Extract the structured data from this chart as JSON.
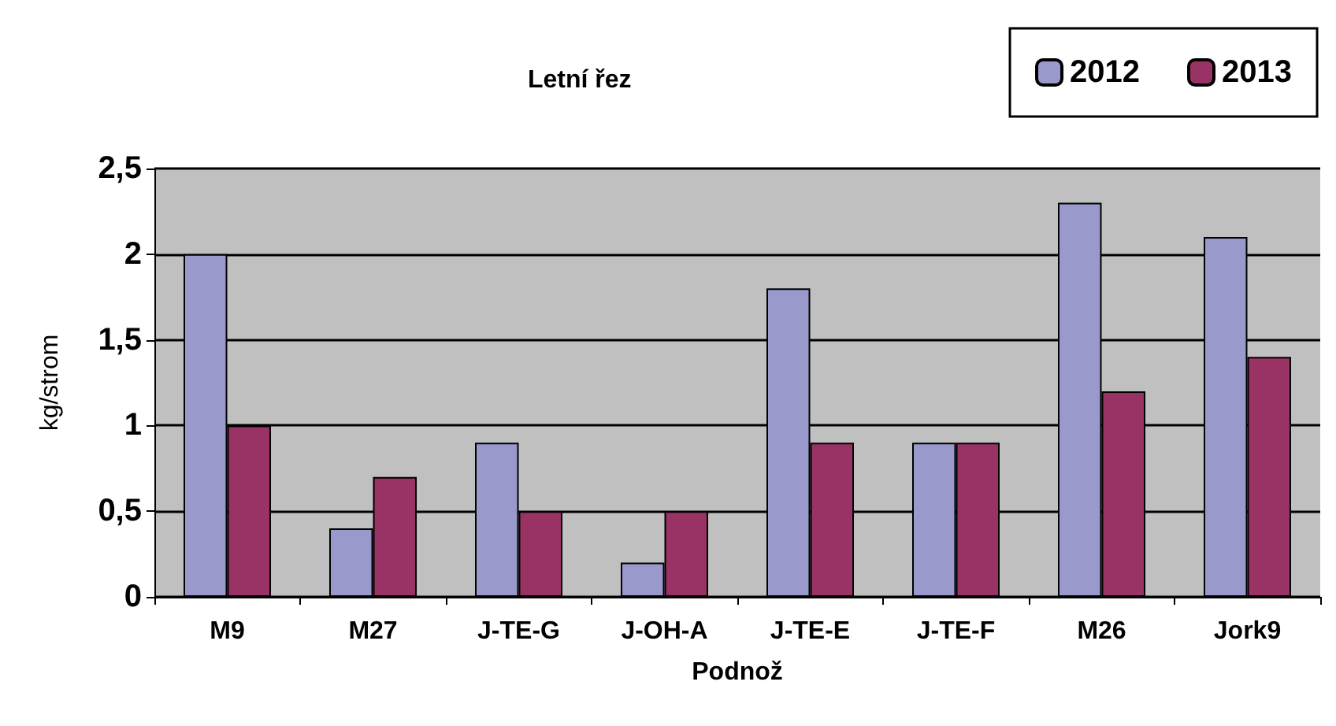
{
  "chart_data": {
    "type": "bar",
    "title": "Letní řez",
    "xlabel": "Podnož",
    "ylabel": "kg/strom",
    "categories": [
      "M9",
      "M27",
      "J-TE-G",
      "J-OH-A",
      "J-TE-E",
      "J-TE-F",
      "M26",
      "Jork9"
    ],
    "series": [
      {
        "name": "2012",
        "color": "#9999cc",
        "values": [
          2.0,
          0.4,
          0.9,
          0.2,
          1.8,
          0.9,
          2.3,
          2.1
        ]
      },
      {
        "name": "2013",
        "color": "#993366",
        "values": [
          1.0,
          0.7,
          0.5,
          0.5,
          0.9,
          0.9,
          1.2,
          1.4
        ]
      }
    ],
    "ylim": [
      0,
      2.5
    ],
    "yticks": [
      0,
      {
        "value": 0.5,
        "label": "0,5"
      },
      1,
      {
        "value": 1.5,
        "label": "1,5"
      },
      2,
      {
        "value": 2.5,
        "label": "2,5"
      }
    ],
    "grid": "y",
    "legend": "top right"
  }
}
